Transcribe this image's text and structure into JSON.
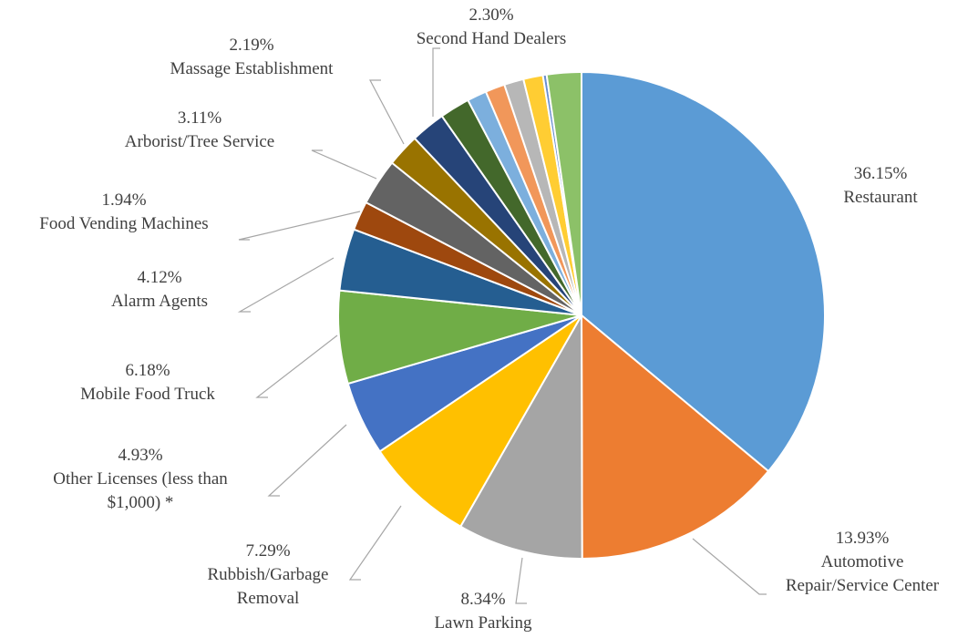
{
  "chart_data": {
    "type": "pie",
    "slices": [
      {
        "label": "Restaurant",
        "label_lines": [
          "Restaurant"
        ],
        "value": 36.15,
        "value_text": "36.15%",
        "color": "#5b9bd5",
        "labeled": true
      },
      {
        "label": "Automotive Repair/Service Center",
        "label_lines": [
          "Automotive",
          "Repair/Service Center"
        ],
        "value": 13.93,
        "value_text": "13.93%",
        "color": "#ed7d31",
        "labeled": true
      },
      {
        "label": "Lawn Parking",
        "label_lines": [
          "Lawn Parking"
        ],
        "value": 8.34,
        "value_text": "8.34%",
        "color": "#a5a5a5",
        "labeled": true
      },
      {
        "label": "Rubbish/Garbage Removal",
        "label_lines": [
          "Rubbish/Garbage",
          "Removal"
        ],
        "value": 7.29,
        "value_text": "7.29%",
        "color": "#ffc000",
        "labeled": true
      },
      {
        "label": "Other Licenses (less than $1,000) *",
        "label_lines": [
          "Other Licenses (less than",
          "$1,000) *"
        ],
        "value": 4.93,
        "value_text": "4.93%",
        "color": "#4472c4",
        "labeled": true
      },
      {
        "label": "Mobile Food Truck",
        "label_lines": [
          "Mobile Food Truck"
        ],
        "value": 6.18,
        "value_text": "6.18%",
        "color": "#70ad47",
        "labeled": true
      },
      {
        "label": "Alarm Agents",
        "label_lines": [
          "Alarm Agents"
        ],
        "value": 4.12,
        "value_text": "4.12%",
        "color": "#255e91",
        "labeled": true
      },
      {
        "label": "Food Vending Machines",
        "label_lines": [
          "Food Vending Machines"
        ],
        "value": 1.94,
        "value_text": "1.94%",
        "color": "#9e480e",
        "labeled": true
      },
      {
        "label": "Arborist/Tree Service",
        "label_lines": [
          "Arborist/Tree Service"
        ],
        "value": 3.11,
        "value_text": "3.11%",
        "color": "#636363",
        "labeled": true
      },
      {
        "label": "Massage Establishment",
        "label_lines": [
          "Massage Establishment"
        ],
        "value": 2.19,
        "value_text": "2.19%",
        "color": "#997300",
        "labeled": true
      },
      {
        "label": "",
        "label_lines": [],
        "value": 2.31,
        "value_text": "",
        "color": "#264478",
        "labeled": false
      },
      {
        "label": "",
        "label_lines": [],
        "value": 2.0,
        "value_text": "",
        "color": "#43682b",
        "labeled": false
      },
      {
        "label": "",
        "label_lines": [],
        "value": 1.3,
        "value_text": "",
        "color": "#7cafdd",
        "labeled": false
      },
      {
        "label": "",
        "label_lines": [],
        "value": 1.3,
        "value_text": "",
        "color": "#f1975a",
        "labeled": false
      },
      {
        "label": "",
        "label_lines": [],
        "value": 1.3,
        "value_text": "",
        "color": "#b7b7b7",
        "labeled": false
      },
      {
        "label": "",
        "label_lines": [],
        "value": 1.3,
        "value_text": "",
        "color": "#ffcd33",
        "labeled": false
      },
      {
        "label": "",
        "label_lines": [],
        "value": 0.25,
        "value_text": "",
        "color": "#698ed0",
        "labeled": false
      },
      {
        "label": "Second Hand Dealers",
        "label_lines": [
          "Second Hand Dealers"
        ],
        "value": 2.3,
        "value_text": "2.30%",
        "color": "#8cc168",
        "labeled": true
      }
    ],
    "title": "",
    "legend": "none"
  }
}
